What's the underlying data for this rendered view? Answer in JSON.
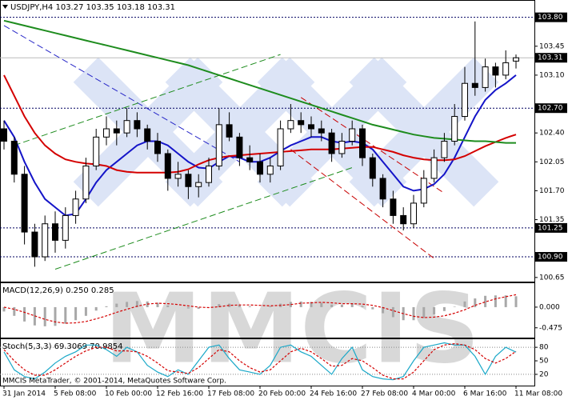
{
  "chart_data": [
    {
      "type": "candlestick",
      "title": "USDJPY,H4  103.27 103.35 103.18 103.31",
      "categories": [
        "31 Jan 2014",
        null,
        null,
        null,
        null,
        "5 Feb 08:00",
        null,
        null,
        null,
        null,
        "10 Feb 00:00",
        null,
        null,
        null,
        null,
        "12 Feb 16:00",
        null,
        null,
        null,
        null,
        "17 Feb 08:00",
        null,
        null,
        null,
        null,
        "20 Feb 00:00",
        null,
        null,
        null,
        null,
        "24 Feb 16:00",
        null,
        null,
        null,
        null,
        "27 Feb 08:00",
        null,
        null,
        null,
        null,
        "4 Mar 00:00",
        null,
        null,
        null,
        null,
        "6 Mar 16:00",
        null,
        null,
        null,
        null,
        "11 Mar 08:00"
      ],
      "open": [
        102.45,
        102.3,
        101.9,
        101.2,
        100.9,
        101.3,
        101.1,
        101.4,
        101.6,
        102.0,
        102.35,
        102.45,
        102.4,
        102.55,
        102.45,
        102.3,
        102.15,
        101.85,
        101.9,
        101.75,
        101.8,
        102.0,
        102.5,
        102.35,
        102.1,
        102.05,
        101.9,
        102.0,
        102.45,
        102.55,
        102.5,
        102.45,
        102.4,
        102.15,
        102.3,
        102.45,
        102.1,
        101.85,
        101.6,
        101.4,
        101.3,
        101.55,
        101.85,
        102.1,
        102.3,
        102.6,
        103.0,
        102.95,
        103.2,
        103.1,
        103.27
      ],
      "high": [
        102.55,
        102.35,
        102.0,
        101.3,
        101.4,
        101.45,
        101.5,
        101.7,
        102.1,
        102.45,
        102.6,
        102.55,
        102.7,
        102.65,
        102.5,
        102.4,
        102.2,
        102.05,
        101.95,
        101.9,
        102.1,
        102.7,
        102.65,
        102.4,
        102.25,
        102.15,
        102.1,
        102.55,
        102.75,
        102.65,
        102.6,
        102.55,
        102.45,
        102.4,
        102.55,
        102.5,
        102.15,
        101.9,
        101.7,
        101.5,
        101.65,
        101.95,
        102.2,
        102.4,
        102.75,
        103.2,
        103.75,
        103.3,
        103.25,
        103.4,
        103.35
      ],
      "low": [
        102.2,
        101.8,
        101.05,
        100.78,
        100.85,
        100.95,
        101.0,
        101.3,
        101.55,
        101.95,
        102.25,
        102.25,
        102.35,
        102.35,
        102.2,
        102.05,
        101.7,
        101.75,
        101.6,
        101.62,
        101.75,
        101.95,
        102.3,
        102.0,
        101.95,
        101.8,
        101.8,
        101.95,
        102.4,
        102.4,
        102.35,
        102.3,
        102.05,
        102.1,
        102.25,
        102.0,
        101.75,
        101.5,
        101.3,
        101.22,
        101.25,
        101.5,
        101.8,
        102.05,
        102.25,
        102.55,
        102.85,
        102.9,
        102.95,
        103.05,
        103.18
      ],
      "close": [
        102.3,
        101.9,
        101.2,
        100.9,
        101.3,
        101.1,
        101.4,
        101.6,
        102.0,
        102.35,
        102.45,
        102.4,
        102.55,
        102.45,
        102.3,
        102.15,
        101.85,
        101.9,
        101.75,
        101.8,
        102.0,
        102.5,
        102.35,
        102.1,
        102.05,
        101.9,
        102.0,
        102.45,
        102.55,
        102.5,
        102.45,
        102.4,
        102.15,
        102.3,
        102.45,
        102.1,
        101.85,
        101.6,
        101.4,
        101.3,
        101.55,
        101.85,
        102.1,
        102.3,
        102.6,
        103.0,
        102.95,
        103.2,
        103.1,
        103.25,
        103.31
      ],
      "up_color": "#ffffff",
      "down_color": "#000000",
      "series": [
        {
          "color": "#1414c8",
          "values": [
            102.55,
            102.35,
            102.05,
            101.8,
            101.6,
            101.5,
            101.4,
            101.42,
            101.6,
            101.8,
            101.95,
            102.05,
            102.15,
            102.25,
            102.3,
            102.3,
            102.25,
            102.15,
            102.05,
            101.98,
            101.97,
            102.05,
            102.12,
            102.1,
            102.05,
            102.05,
            102.1,
            102.18,
            102.25,
            102.3,
            102.35,
            102.35,
            102.3,
            102.28,
            102.3,
            102.28,
            102.2,
            102.05,
            101.9,
            101.75,
            101.7,
            101.72,
            101.78,
            101.9,
            102.1,
            102.35,
            102.6,
            102.8,
            102.92,
            103.0,
            103.1
          ]
        },
        {
          "color": "#d40000",
          "values": [
            103.1,
            102.85,
            102.6,
            102.4,
            102.25,
            102.15,
            102.08,
            102.05,
            102.03,
            102.02,
            102.0,
            101.95,
            101.93,
            101.92,
            101.92,
            101.92,
            101.92,
            101.93,
            101.96,
            102.02,
            102.07,
            102.1,
            102.12,
            102.13,
            102.14,
            102.15,
            102.16,
            102.17,
            102.18,
            102.19,
            102.2,
            102.2,
            102.2,
            102.21,
            102.22,
            102.23,
            102.23,
            102.2,
            102.17,
            102.13,
            102.1,
            102.08,
            102.07,
            102.07,
            102.08,
            102.12,
            102.18,
            102.24,
            102.29,
            102.34,
            102.38
          ]
        },
        {
          "color": "#1e8c1e",
          "values": [
            103.76,
            103.73,
            103.7,
            103.67,
            103.64,
            103.61,
            103.58,
            103.55,
            103.52,
            103.49,
            103.46,
            103.43,
            103.4,
            103.37,
            103.34,
            103.31,
            103.28,
            103.25,
            103.22,
            103.18,
            103.14,
            103.1,
            103.06,
            103.02,
            102.98,
            102.94,
            102.9,
            102.86,
            102.82,
            102.78,
            102.74,
            102.7,
            102.66,
            102.62,
            102.58,
            102.54,
            102.5,
            102.47,
            102.44,
            102.41,
            102.38,
            102.36,
            102.34,
            102.33,
            102.32,
            102.31,
            102.3,
            102.3,
            102.29,
            102.28,
            102.28
          ]
        }
      ],
      "trendlines": [
        {
          "color": "#2828c8",
          "x": [
            0,
            23
          ],
          "values": [
            103.7,
            102.05
          ]
        },
        {
          "color": "#1e8c1e",
          "x": [
            1,
            27
          ],
          "values": [
            102.25,
            103.35
          ]
        },
        {
          "color": "#1e8c1e",
          "x": [
            5,
            34
          ],
          "values": [
            100.75,
            101.98
          ]
        },
        {
          "color": "#c80000",
          "x": [
            29,
            43
          ],
          "values": [
            102.83,
            101.67
          ]
        },
        {
          "color": "#c80000",
          "x": [
            28,
            42
          ],
          "values": [
            102.2,
            100.88
          ]
        }
      ],
      "levels": [
        {
          "value": 103.8,
          "label": "103.80"
        },
        {
          "value": 102.7,
          "label": "102.70"
        },
        {
          "value": 101.25,
          "label": "101.25"
        },
        {
          "value": 100.9,
          "label": "100.90"
        }
      ],
      "current": 103.31,
      "ylim": [
        100.6,
        104.0
      ],
      "yticks": [
        103.45,
        {
          "value": 103.1,
          "label": "103.10"
        },
        {
          "value": 102.4,
          "label": "102.40"
        },
        102.05,
        {
          "value": 101.7,
          "label": "101.70"
        },
        101.35,
        100.65
      ]
    },
    {
      "type": "indicator",
      "title": "MACD(12,26,9) 0.250 0.285",
      "series": [
        {
          "style": "bar",
          "color": "#a8a8a8",
          "values": [
            -0.1,
            -0.2,
            -0.33,
            -0.42,
            -0.44,
            -0.43,
            -0.38,
            -0.3,
            -0.2,
            -0.08,
            0.02,
            0.08,
            0.12,
            0.14,
            0.13,
            0.1,
            0.04,
            0.0,
            -0.03,
            -0.04,
            0.0,
            0.07,
            0.08,
            0.05,
            0.02,
            0.0,
            0.02,
            0.08,
            0.12,
            0.13,
            0.12,
            0.1,
            0.06,
            0.06,
            0.08,
            0.03,
            -0.05,
            -0.14,
            -0.23,
            -0.3,
            -0.3,
            -0.25,
            -0.17,
            -0.09,
            0.01,
            0.13,
            0.2,
            0.26,
            0.27,
            0.27,
            0.25
          ]
        },
        {
          "style": "line",
          "dash": true,
          "color": "#d40000",
          "values": [
            0.0,
            -0.05,
            -0.12,
            -0.2,
            -0.28,
            -0.34,
            -0.37,
            -0.36,
            -0.33,
            -0.27,
            -0.2,
            -0.12,
            -0.05,
            0.02,
            0.07,
            0.09,
            0.08,
            0.06,
            0.03,
            0.0,
            -0.01,
            0.01,
            0.04,
            0.05,
            0.05,
            0.04,
            0.03,
            0.04,
            0.06,
            0.09,
            0.1,
            0.11,
            0.1,
            0.08,
            0.08,
            0.07,
            0.04,
            -0.01,
            -0.08,
            -0.15,
            -0.21,
            -0.24,
            -0.23,
            -0.2,
            -0.14,
            -0.06,
            0.04,
            0.12,
            0.19,
            0.24,
            0.285
          ]
        }
      ],
      "ylim": [
        -0.7,
        0.55
      ],
      "yticks": [
        {
          "value": 0,
          "label": "0.000"
        },
        -0.475
      ]
    },
    {
      "type": "indicator",
      "title": "Stoch(5,3,3) 69.3069 70.9854",
      "series": [
        {
          "style": "line",
          "color": "#1aa8c8",
          "values": [
            70,
            30,
            15,
            10,
            25,
            45,
            60,
            70,
            85,
            85,
            75,
            60,
            80,
            70,
            40,
            25,
            15,
            30,
            20,
            50,
            80,
            85,
            55,
            30,
            25,
            20,
            40,
            80,
            85,
            70,
            60,
            40,
            20,
            55,
            80,
            30,
            15,
            10,
            8,
            15,
            50,
            80,
            85,
            90,
            85,
            85,
            60,
            20,
            60,
            80,
            69.3069
          ]
        },
        {
          "style": "line",
          "dash": true,
          "color": "#d40000",
          "values": [
            75,
            50,
            30,
            18,
            18,
            30,
            45,
            60,
            72,
            80,
            80,
            72,
            72,
            70,
            60,
            45,
            28,
            25,
            22,
            35,
            55,
            75,
            70,
            50,
            35,
            25,
            30,
            50,
            70,
            78,
            70,
            55,
            38,
            40,
            55,
            50,
            35,
            18,
            10,
            10,
            25,
            50,
            75,
            85,
            88,
            85,
            75,
            55,
            45,
            55,
            70.9854
          ]
        }
      ],
      "levels": [
        80,
        20
      ],
      "ylim": [
        -5,
        98
      ],
      "yticks": [
        80,
        50,
        20
      ]
    }
  ],
  "watermark": "MMCIS",
  "footer": "MMCIS MetaTrader, © 2001-2014, MetaQuotes Software Corp."
}
